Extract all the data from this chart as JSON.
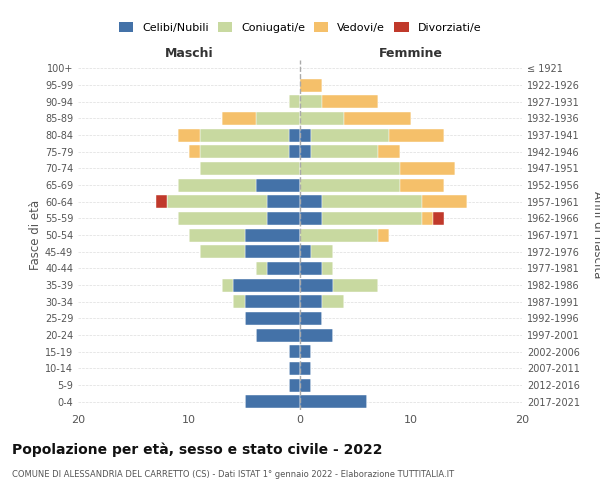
{
  "age_groups": [
    "0-4",
    "5-9",
    "10-14",
    "15-19",
    "20-24",
    "25-29",
    "30-34",
    "35-39",
    "40-44",
    "45-49",
    "50-54",
    "55-59",
    "60-64",
    "65-69",
    "70-74",
    "75-79",
    "80-84",
    "85-89",
    "90-94",
    "95-99",
    "100+"
  ],
  "birth_years": [
    "2017-2021",
    "2012-2016",
    "2007-2011",
    "2002-2006",
    "1997-2001",
    "1992-1996",
    "1987-1991",
    "1982-1986",
    "1977-1981",
    "1972-1976",
    "1967-1971",
    "1962-1966",
    "1957-1961",
    "1952-1956",
    "1947-1951",
    "1942-1946",
    "1937-1941",
    "1932-1936",
    "1927-1931",
    "1922-1926",
    "≤ 1921"
  ],
  "maschi": {
    "celibi": [
      5,
      1,
      1,
      1,
      4,
      5,
      5,
      6,
      3,
      5,
      5,
      3,
      3,
      4,
      0,
      1,
      1,
      0,
      0,
      0,
      0
    ],
    "coniugati": [
      0,
      0,
      0,
      0,
      0,
      0,
      1,
      1,
      1,
      4,
      5,
      8,
      9,
      7,
      9,
      8,
      8,
      4,
      1,
      0,
      0
    ],
    "vedovi": [
      0,
      0,
      0,
      0,
      0,
      0,
      0,
      0,
      0,
      0,
      0,
      0,
      0,
      0,
      0,
      1,
      2,
      3,
      0,
      0,
      0
    ],
    "divorziati": [
      0,
      0,
      0,
      0,
      0,
      0,
      0,
      0,
      0,
      0,
      0,
      0,
      1,
      0,
      0,
      0,
      0,
      0,
      0,
      0,
      0
    ]
  },
  "femmine": {
    "nubili": [
      6,
      1,
      1,
      1,
      3,
      2,
      2,
      3,
      2,
      1,
      0,
      2,
      2,
      0,
      0,
      1,
      1,
      0,
      0,
      0,
      0
    ],
    "coniugate": [
      0,
      0,
      0,
      0,
      0,
      0,
      2,
      4,
      1,
      2,
      7,
      9,
      9,
      9,
      9,
      6,
      7,
      4,
      2,
      0,
      0
    ],
    "vedove": [
      0,
      0,
      0,
      0,
      0,
      0,
      0,
      0,
      0,
      0,
      1,
      1,
      4,
      4,
      5,
      2,
      5,
      6,
      5,
      2,
      0
    ],
    "divorziate": [
      0,
      0,
      0,
      0,
      0,
      0,
      0,
      0,
      0,
      0,
      0,
      1,
      0,
      0,
      0,
      0,
      0,
      0,
      0,
      0,
      0
    ]
  },
  "colors": {
    "celibi_nubili": "#4472a8",
    "coniugati": "#c8d9a0",
    "vedovi": "#f5c06a",
    "divorziati": "#c0392b"
  },
  "xlim": 20,
  "title": "Popolazione per età, sesso e stato civile - 2022",
  "subtitle": "COMUNE DI ALESSANDRIA DEL CARRETTO (CS) - Dati ISTAT 1° gennaio 2022 - Elaborazione TUTTITALIA.IT",
  "ylabel_left": "Fasce di età",
  "ylabel_right": "Anni di nascita",
  "maschi_label": "Maschi",
  "femmine_label": "Femmine"
}
